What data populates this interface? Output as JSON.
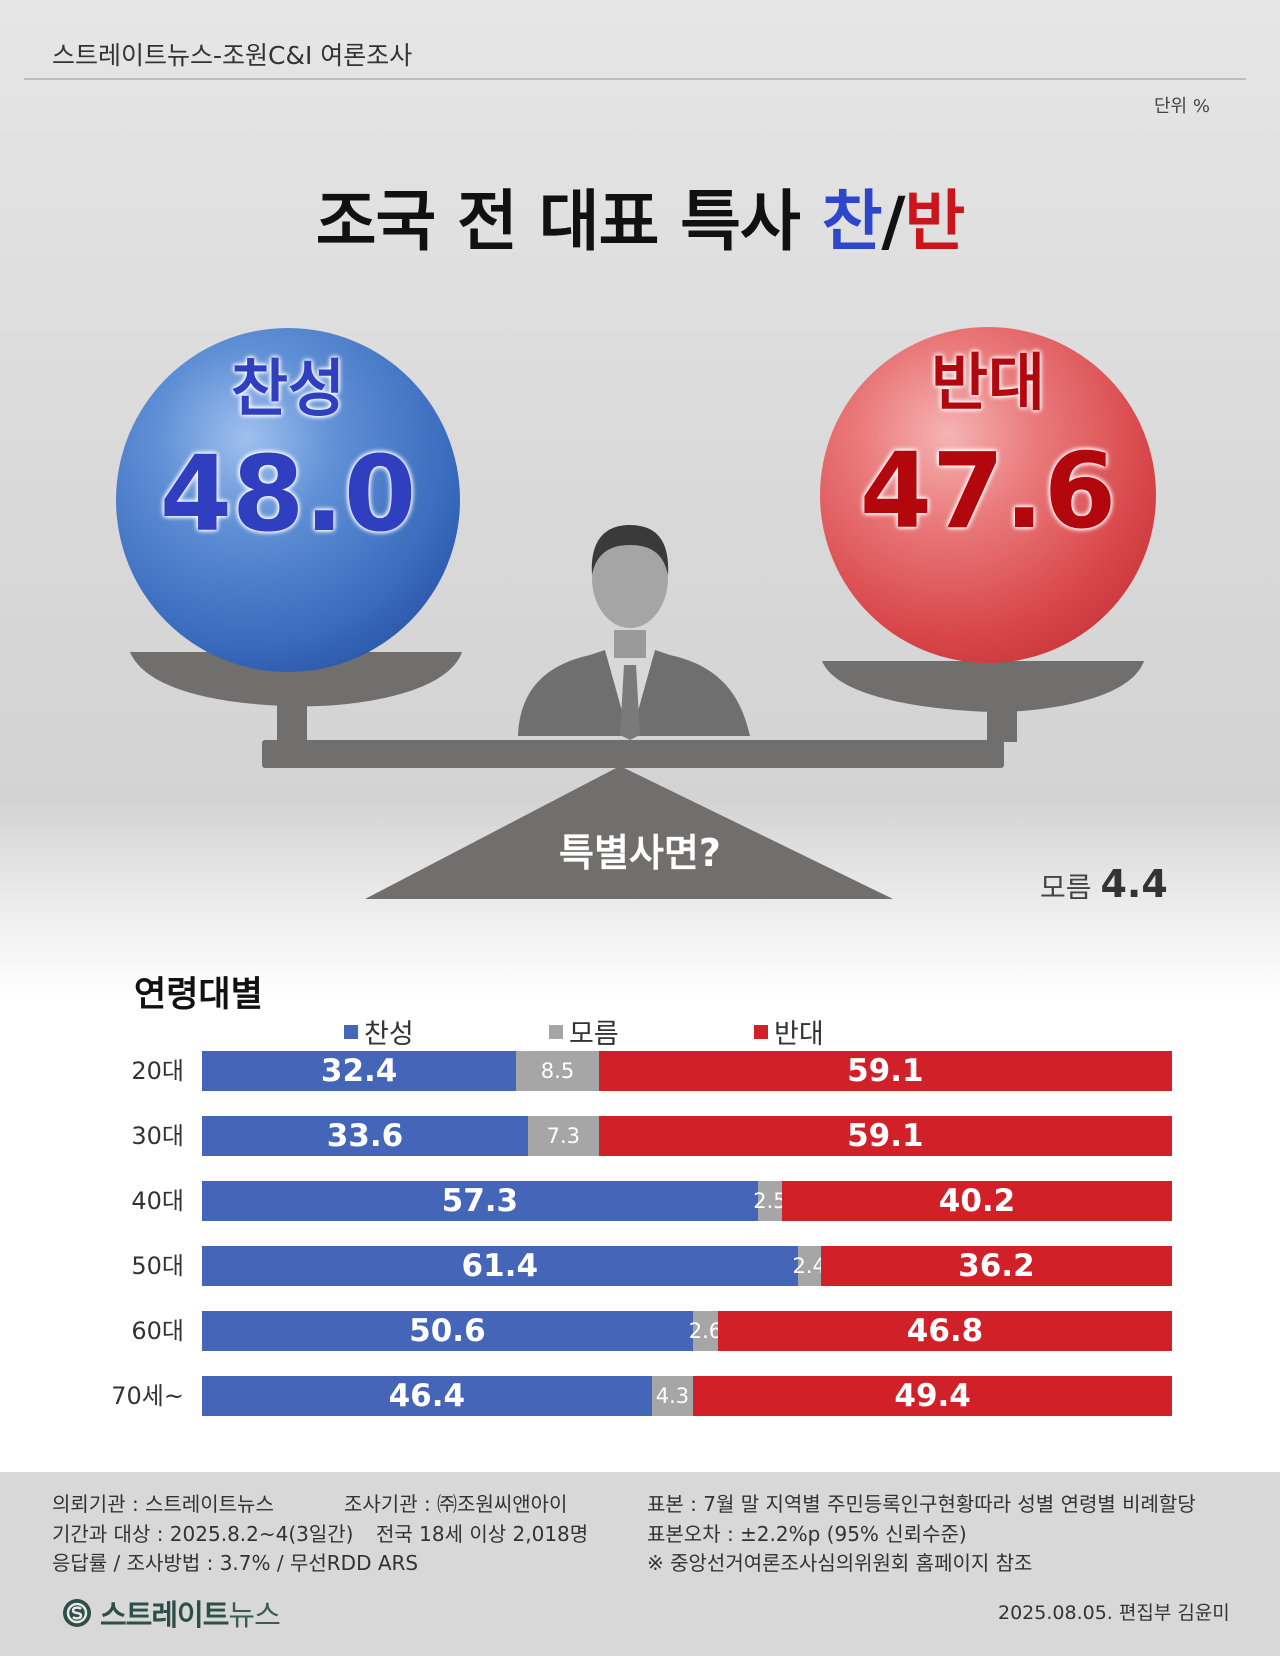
{
  "header": {
    "title": "스트레이트뉴스-조원C&I 여론조사",
    "unit": "단위 %"
  },
  "main_title": {
    "text": "조국 전 대표 특사 ",
    "pro": "찬",
    "slash": "/",
    "con": "반"
  },
  "scale": {
    "pro_label": "찬성",
    "pro_value": "48.0",
    "con_label": "반대",
    "con_value": "47.6",
    "question": "특별사면?",
    "unknown_label": "모름",
    "unknown_value": "4.4"
  },
  "age_section": {
    "title": "연령대별",
    "legend": [
      "찬성",
      "모름",
      "반대"
    ]
  },
  "colors": {
    "pro": "#4565b9",
    "unknown": "#a6a6a6",
    "con": "#d12027"
  },
  "chart_data": {
    "type": "bar",
    "orientation": "horizontal",
    "stacked": true,
    "categories": [
      "20대",
      "30대",
      "40대",
      "50대",
      "60대",
      "70세~"
    ],
    "series": [
      {
        "name": "찬성",
        "values": [
          32.4,
          33.6,
          57.3,
          61.4,
          50.6,
          46.4
        ]
      },
      {
        "name": "모름",
        "values": [
          8.5,
          7.3,
          2.5,
          2.4,
          2.6,
          4.3
        ]
      },
      {
        "name": "반대",
        "values": [
          59.1,
          59.1,
          40.2,
          36.2,
          46.8,
          49.4
        ]
      }
    ],
    "value_labels": [
      [
        "32.4",
        "8.5",
        "59.1"
      ],
      [
        "33.6",
        "7.3",
        "59.1"
      ],
      [
        "57.3",
        "2.5",
        "40.2"
      ],
      [
        "61.4",
        "2.4",
        "36.2"
      ],
      [
        "50.6",
        "2.6",
        "46.8"
      ],
      [
        "46.4",
        "4.3",
        "49.4"
      ]
    ],
    "legend_position": "top"
  },
  "footer": {
    "left": [
      "의뢰기관 : 스트레이트뉴스",
      "기간과 대상 : 2025.8.2~4(3일간)",
      "응답률 / 조사방법 : 3.7% / 무선RDD ARS"
    ],
    "middle": [
      "조사기관 : ㈜조원씨앤아이",
      "전국 18세 이상  2,018명"
    ],
    "right": [
      "표본 : 7월 말 지역별 주민등록인구현황따라 성별 연령별 비례할당",
      "표본오차 : ±2.2%p (95% 신뢰수준)",
      "※ 중앙선거여론조사심의위원회 홈페이지 참조"
    ],
    "brand": "스트레이트",
    "brand_suffix": "뉴스",
    "date_credit": "2025.08.05. 편집부 김윤미"
  }
}
